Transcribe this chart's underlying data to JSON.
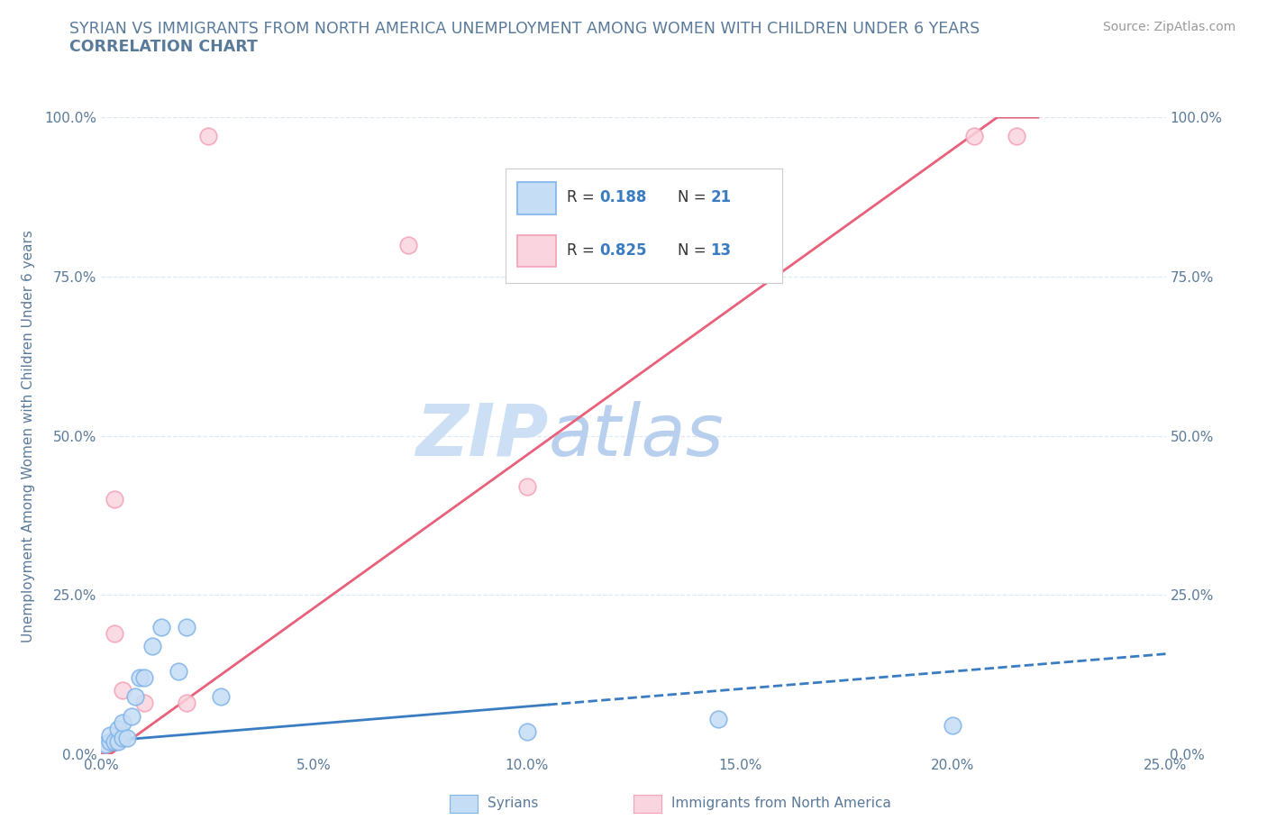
{
  "title_line1": "SYRIAN VS IMMIGRANTS FROM NORTH AMERICA UNEMPLOYMENT AMONG WOMEN WITH CHILDREN UNDER 6 YEARS",
  "title_line2": "CORRELATION CHART",
  "source_text": "Source: ZipAtlas.com",
  "ylabel": "Unemployment Among Women with Children Under 6 years",
  "xlim": [
    0,
    0.25
  ],
  "ylim": [
    0,
    1.0
  ],
  "xtick_labels": [
    "0.0%",
    "5.0%",
    "10.0%",
    "15.0%",
    "20.0%",
    "25.0%"
  ],
  "xtick_values": [
    0.0,
    0.05,
    0.1,
    0.15,
    0.2,
    0.25
  ],
  "ytick_labels": [
    "0.0%",
    "25.0%",
    "50.0%",
    "75.0%",
    "100.0%"
  ],
  "ytick_values": [
    0.0,
    0.25,
    0.5,
    0.75,
    1.0
  ],
  "syrians_x": [
    0.001,
    0.002,
    0.002,
    0.003,
    0.004,
    0.004,
    0.005,
    0.005,
    0.006,
    0.007,
    0.008,
    0.009,
    0.01,
    0.012,
    0.014,
    0.018,
    0.02,
    0.028,
    0.1,
    0.145,
    0.2
  ],
  "syrians_y": [
    0.015,
    0.02,
    0.03,
    0.02,
    0.02,
    0.04,
    0.025,
    0.05,
    0.025,
    0.06,
    0.09,
    0.12,
    0.12,
    0.17,
    0.2,
    0.13,
    0.2,
    0.09,
    0.035,
    0.055,
    0.045
  ],
  "na_x": [
    0.001,
    0.002,
    0.003,
    0.003,
    0.004,
    0.005,
    0.01,
    0.02,
    0.025,
    0.072,
    0.1,
    0.205,
    0.215
  ],
  "na_y": [
    0.015,
    0.02,
    0.19,
    0.4,
    0.03,
    0.1,
    0.08,
    0.08,
    0.97,
    0.8,
    0.42,
    0.97,
    0.97
  ],
  "R_syrians": 0.188,
  "N_syrians": 21,
  "R_na": 0.825,
  "N_na": 13,
  "color_syrians_edge": "#7fb3e8",
  "color_syrians_fill": "#c5ddf5",
  "color_na_edge": "#f4a0b5",
  "color_na_fill": "#fad4de",
  "color_trend_syrians": "#3a7cc2",
  "color_trend_na": "#e8607a",
  "watermark_zip_color": "#ccdff5",
  "watermark_atlas_color": "#b8d0ee",
  "background_color": "#ffffff",
  "grid_color": "#dde8f2",
  "title_color": "#5a7a9a",
  "source_color": "#999999",
  "tick_color": "#5a7a9a",
  "legend_border_color": "#cccccc",
  "trend_na_slope": 4.8,
  "trend_na_intercept": -0.01,
  "trend_s_slope": 0.55,
  "trend_s_intercept": 0.02,
  "trend_s_solid_end": 0.105,
  "trend_na_solid_end": 0.22
}
